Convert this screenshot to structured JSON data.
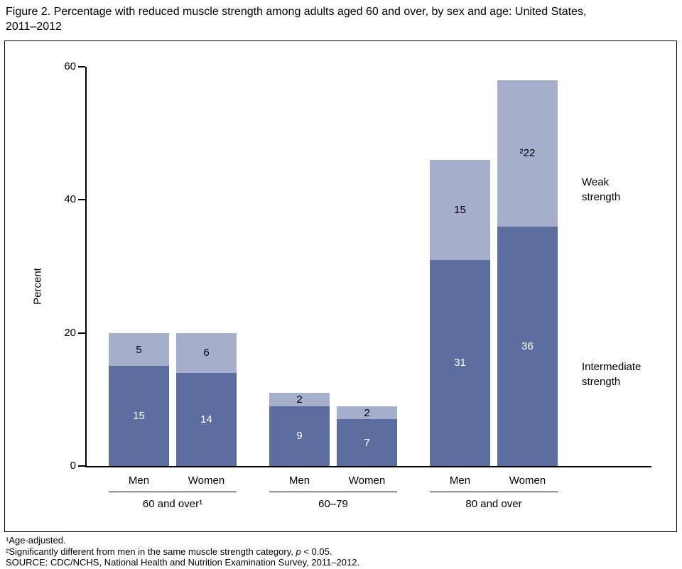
{
  "title_line1": "Figure 2. Percentage with reduced muscle strength among adults aged 60 and over, by sex and age: United States,",
  "title_line2": "2011–2012",
  "chart_data": {
    "type": "bar",
    "stacked": true,
    "title": "Percentage with reduced muscle strength among adults aged 60 and over, by sex and age: United States, 2011–2012",
    "xlabel": "",
    "ylabel": "Percent",
    "ylim": [
      0,
      60
    ],
    "yticks": [
      0,
      20,
      40,
      60
    ],
    "grid": false,
    "legend_position": "right-annotations",
    "series_labels": {
      "weak": "Weak strength",
      "intermediate": "Intermediate strength"
    },
    "colors": {
      "intermediate": "#5c6da0",
      "weak": "#a5aeca"
    },
    "groups": [
      {
        "label": "60 and over¹",
        "bars": [
          {
            "label": "Men",
            "intermediate": 15,
            "weak": 5
          },
          {
            "label": "Women",
            "intermediate": 14,
            "weak": 6
          }
        ]
      },
      {
        "label": "60–79",
        "bars": [
          {
            "label": "Men",
            "intermediate": 9,
            "weak": 2
          },
          {
            "label": "Women",
            "intermediate": 7,
            "weak": 2
          }
        ]
      },
      {
        "label": "80 and over",
        "bars": [
          {
            "label": "Men",
            "intermediate": 31,
            "weak": 15
          },
          {
            "label": "Women",
            "intermediate": 36,
            "weak": 22,
            "weak_label": "²22"
          }
        ]
      }
    ]
  },
  "footnotes": {
    "line1": "¹Age-adjusted.",
    "line2_pre": "²Significantly different from men in the same muscle strength category, ",
    "line2_italic": "p",
    "line2_post": " < 0.05.",
    "line3": "SOURCE: CDC/NCHS, National Health and Nutrition Examination Survey, 2011–2012."
  }
}
